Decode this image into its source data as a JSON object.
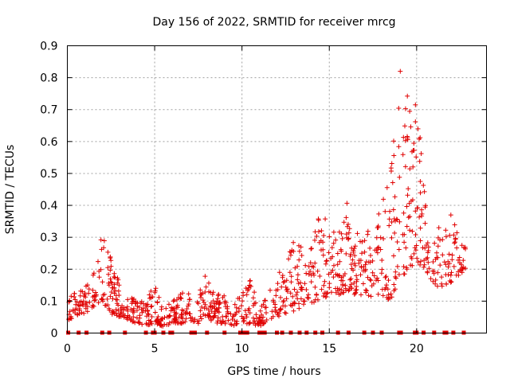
{
  "chart_data": {
    "type": "scatter",
    "title": "Day 156 of 2022, SRMTID for receiver mrcg",
    "xlabel": "GPS time / hours",
    "ylabel": "SRMTID / TECUs",
    "xlim": [
      0,
      24
    ],
    "ylim": [
      0,
      0.9
    ],
    "x_ticks": [
      0,
      5,
      10,
      15,
      20
    ],
    "x_tick_labels": [
      "0",
      "5",
      "10",
      "15",
      "20"
    ],
    "y_ticks": [
      0,
      0.1,
      0.2,
      0.3,
      0.4,
      0.5,
      0.6,
      0.7,
      0.8,
      0.9
    ],
    "y_tick_labels": [
      "0",
      "0.1",
      "0.2",
      "0.3",
      "0.4",
      "0.5",
      "0.6",
      "0.7",
      "0.8",
      "0.9"
    ],
    "grid": true,
    "marker": "plus",
    "color": "#e00000",
    "envelope": {
      "description": "approximate per-hour band of SRMTID values (data units) read from the plot",
      "hours": [
        0,
        1,
        1.5,
        2,
        2.5,
        3,
        3.5,
        4,
        4.5,
        5,
        5.5,
        6,
        6.5,
        7,
        7.5,
        8,
        8.5,
        9,
        9.5,
        10,
        10.5,
        11,
        11.5,
        12,
        12.5,
        13,
        13.5,
        14,
        14.5,
        15,
        15.5,
        16,
        16.5,
        17,
        17.5,
        18,
        18.5,
        19,
        19.5,
        20,
        20.5,
        21,
        21.5,
        22,
        22.5,
        22.8
      ],
      "low": [
        0.04,
        0.06,
        0.08,
        0.1,
        0.06,
        0.05,
        0.04,
        0.03,
        0.02,
        0.03,
        0.02,
        0.03,
        0.03,
        0.04,
        0.03,
        0.04,
        0.03,
        0.03,
        0.02,
        0.02,
        0.03,
        0.02,
        0.04,
        0.05,
        0.06,
        0.07,
        0.08,
        0.09,
        0.1,
        0.12,
        0.12,
        0.13,
        0.12,
        0.12,
        0.11,
        0.12,
        0.1,
        0.16,
        0.2,
        0.22,
        0.2,
        0.15,
        0.14,
        0.16,
        0.18,
        0.2
      ],
      "high": [
        0.12,
        0.14,
        0.22,
        0.31,
        0.24,
        0.16,
        0.12,
        0.1,
        0.1,
        0.16,
        0.08,
        0.1,
        0.13,
        0.14,
        0.12,
        0.2,
        0.12,
        0.13,
        0.1,
        0.12,
        0.18,
        0.06,
        0.16,
        0.2,
        0.2,
        0.33,
        0.26,
        0.3,
        0.4,
        0.34,
        0.3,
        0.42,
        0.3,
        0.36,
        0.3,
        0.42,
        0.5,
        0.83,
        0.78,
        0.74,
        0.42,
        0.38,
        0.33,
        0.38,
        0.28,
        0.27
      ],
      "count_per_hour": 45,
      "seed": 156
    },
    "gap_markers_hours": [
      0.05,
      0.65,
      1.1,
      2.0,
      2.4,
      3.3,
      4.5,
      4.9,
      5.0,
      5.5,
      5.9,
      6.0,
      7.1,
      7.3,
      8.0,
      9.0,
      9.9,
      10.1,
      10.3,
      11.0,
      11.1,
      11.3,
      12.0,
      12.3,
      12.8,
      13.3,
      13.7,
      14.2,
      14.6,
      15.5,
      16.1,
      17.0,
      17.5,
      18.0,
      19.0,
      19.1,
      19.9,
      20.0,
      20.4,
      21.0,
      21.6,
      21.7,
      22.1,
      22.7
    ]
  }
}
